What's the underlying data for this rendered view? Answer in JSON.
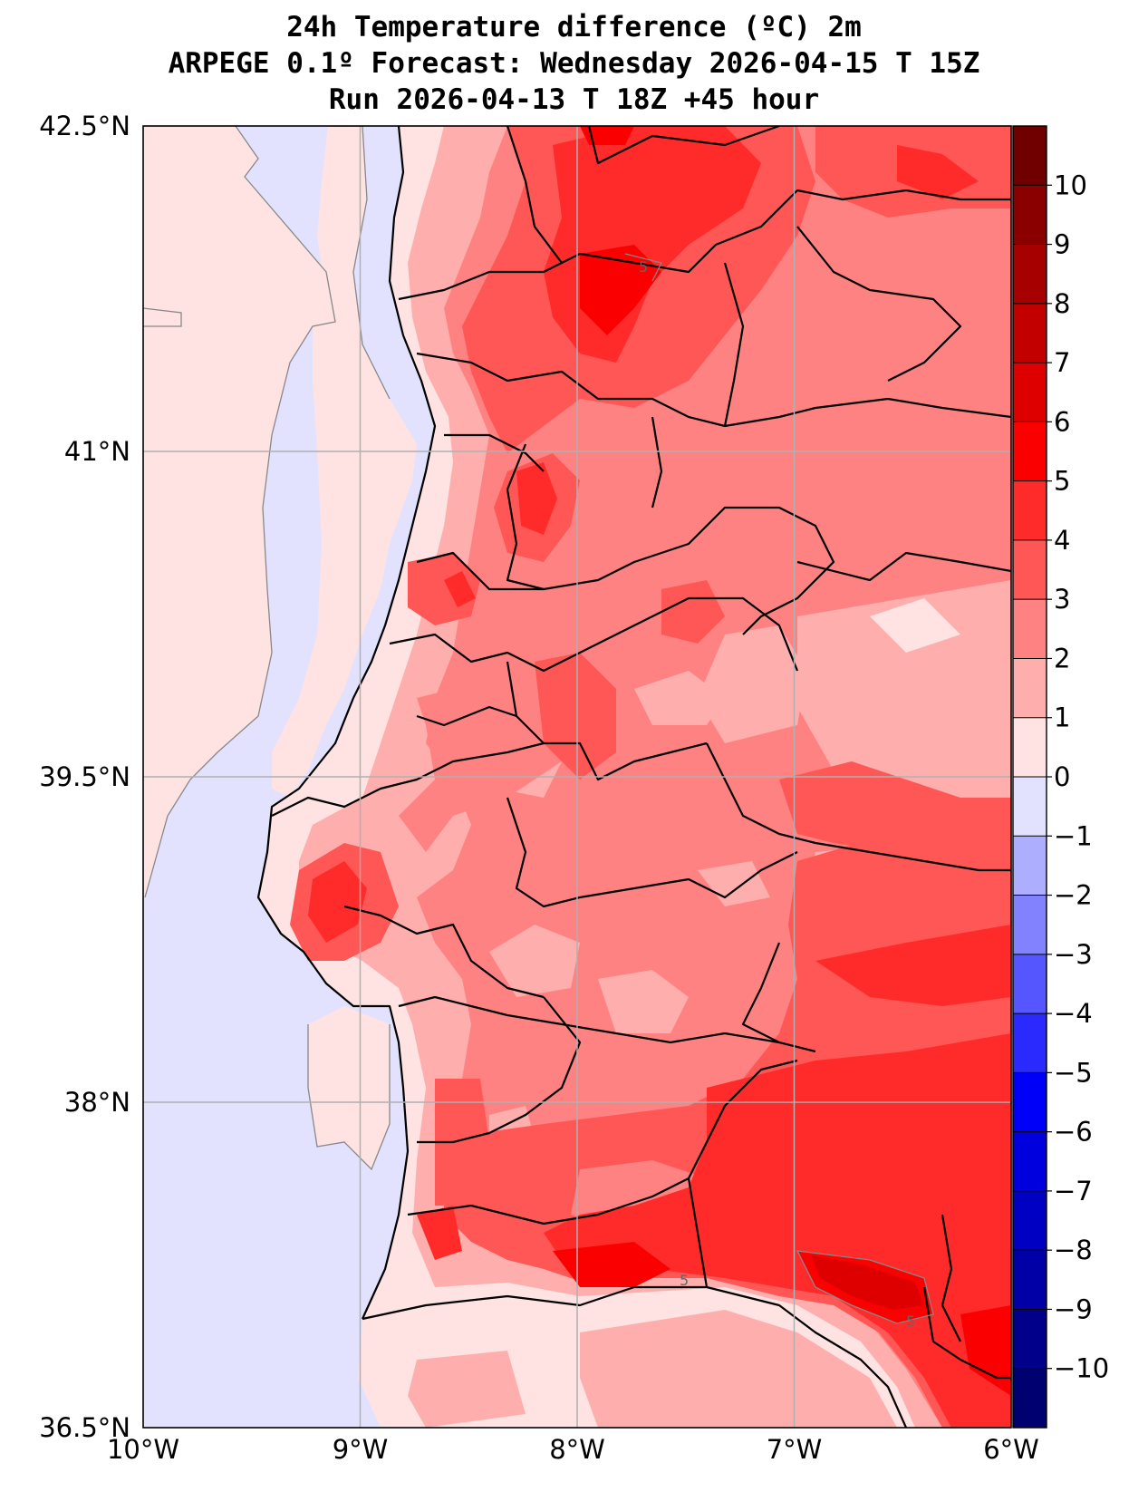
{
  "title": {
    "line1": "24h Temperature difference (ºC) 2m",
    "line2": "ARPEGE 0.1º Forecast: Wednesday 2026-04-15 T 15Z",
    "line3": "Run 2026-04-13 T 18Z +45 hour"
  },
  "map": {
    "lon_range": [
      -10,
      -6
    ],
    "lat_range": [
      36.5,
      42.5
    ],
    "lon_ticks": [
      {
        "value": -10,
        "label": "10°W"
      },
      {
        "value": -9,
        "label": "9°W"
      },
      {
        "value": -8,
        "label": "8°W"
      },
      {
        "value": -7,
        "label": "7°W"
      },
      {
        "value": -6,
        "label": "6°W"
      }
    ],
    "lat_ticks": [
      {
        "value": 42.5,
        "label": "42.5°N"
      },
      {
        "value": 41,
        "label": "41°N"
      },
      {
        "value": 39.5,
        "label": "39.5°N"
      },
      {
        "value": 38,
        "label": "38°N"
      },
      {
        "value": 36.5,
        "label": "36.5°N"
      }
    ],
    "gridlines": true,
    "contour_labels": [
      "5",
      "5",
      "5"
    ]
  },
  "colorbar": {
    "ticks": [
      "10",
      "9",
      "8",
      "7",
      "6",
      "5",
      "4",
      "3",
      "2",
      "1",
      "0",
      "−1",
      "−2",
      "−3",
      "−4",
      "−5",
      "−6",
      "−7",
      "−8",
      "−9",
      "−10"
    ],
    "levels": [
      {
        "range": [
          10,
          11
        ],
        "color": "#700000"
      },
      {
        "range": [
          9,
          10
        ],
        "color": "#8a0000"
      },
      {
        "range": [
          8,
          9
        ],
        "color": "#a60000"
      },
      {
        "range": [
          7,
          8
        ],
        "color": "#c20000"
      },
      {
        "range": [
          6,
          7
        ],
        "color": "#de0000"
      },
      {
        "range": [
          5,
          6
        ],
        "color": "#fa0000"
      },
      {
        "range": [
          4,
          5
        ],
        "color": "#ff2a2a"
      },
      {
        "range": [
          3,
          4
        ],
        "color": "#ff5656"
      },
      {
        "range": [
          2,
          3
        ],
        "color": "#ff8282"
      },
      {
        "range": [
          1,
          2
        ],
        "color": "#ffaeae"
      },
      {
        "range": [
          0,
          1
        ],
        "color": "#ffe2e2"
      },
      {
        "range": [
          -1,
          0
        ],
        "color": "#e2e2ff"
      },
      {
        "range": [
          -2,
          -1
        ],
        "color": "#aeaeff"
      },
      {
        "range": [
          -3,
          -2
        ],
        "color": "#8282ff"
      },
      {
        "range": [
          -4,
          -3
        ],
        "color": "#5656ff"
      },
      {
        "range": [
          -5,
          -4
        ],
        "color": "#2a2aff"
      },
      {
        "range": [
          -6,
          -5
        ],
        "color": "#0000fa"
      },
      {
        "range": [
          -7,
          -6
        ],
        "color": "#0000de"
      },
      {
        "range": [
          -8,
          -7
        ],
        "color": "#0000c2"
      },
      {
        "range": [
          -9,
          -8
        ],
        "color": "#0000a6"
      },
      {
        "range": [
          -10,
          -9
        ],
        "color": "#00008a"
      },
      {
        "range": [
          -11,
          -10
        ],
        "color": "#000070"
      }
    ]
  }
}
